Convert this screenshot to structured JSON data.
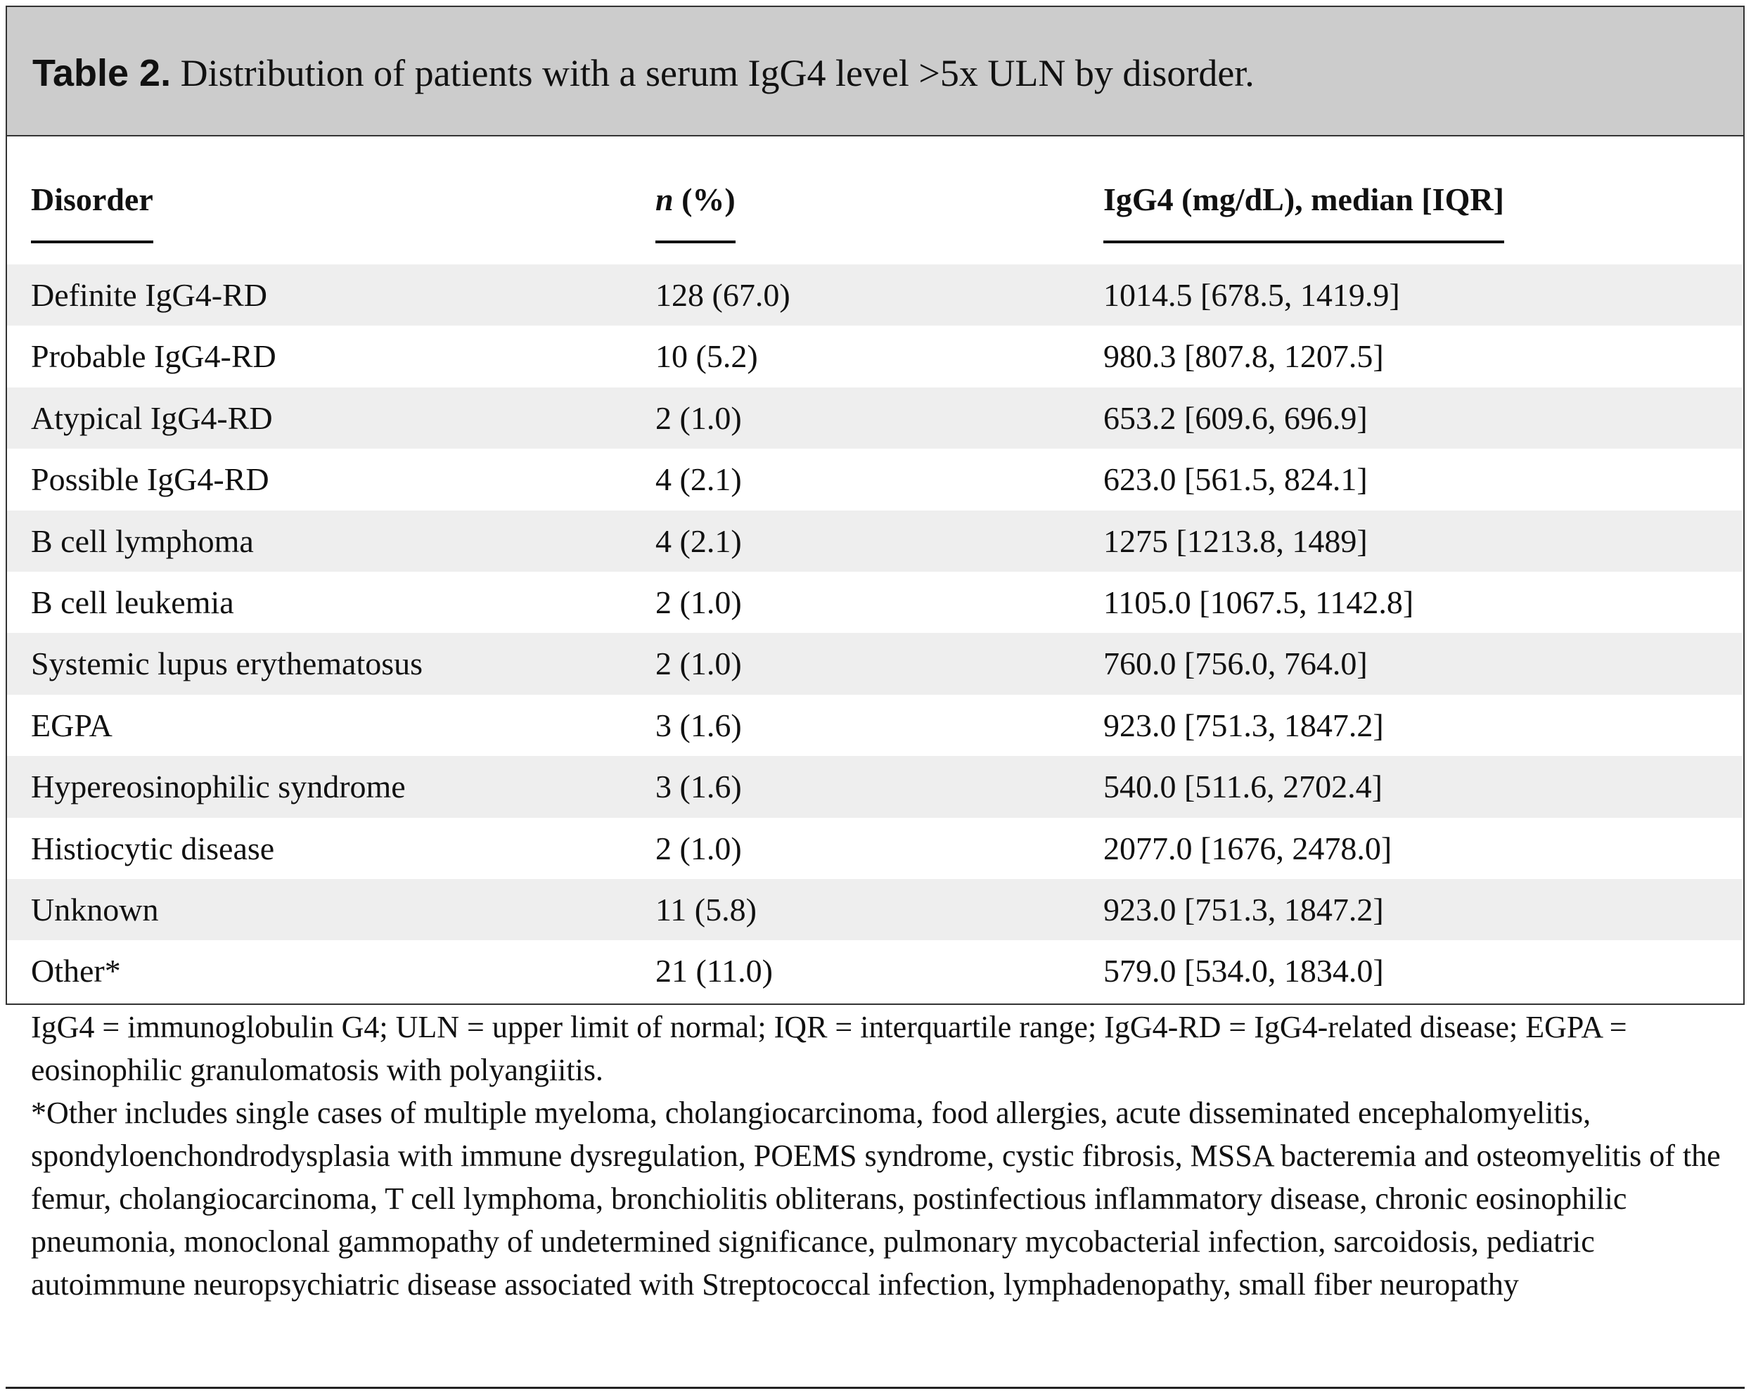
{
  "title": {
    "label": "Table 2.",
    "text": "Distribution of patients with a serum IgG4 level >5x ULN by disorder."
  },
  "table": {
    "headers": [
      "Disorder",
      [
        "n",
        " (%)"
      ],
      "IgG4 (mg/dL), median [IQR]"
    ],
    "rows": [
      [
        "Definite IgG4-RD",
        "128 (67.0)",
        "1014.5 [678.5, 1419.9]"
      ],
      [
        "Probable IgG4-RD",
        "10 (5.2)",
        "980.3 [807.8, 1207.5]"
      ],
      [
        "Atypical IgG4-RD",
        "2 (1.0)",
        "653.2 [609.6, 696.9]"
      ],
      [
        "Possible IgG4-RD",
        "4 (2.1)",
        "623.0 [561.5, 824.1]"
      ],
      [
        "B cell lymphoma",
        "4 (2.1)",
        "1275 [1213.8, 1489]"
      ],
      [
        "B cell leukemia",
        "2 (1.0)",
        "1105.0 [1067.5, 1142.8]"
      ],
      [
        "Systemic lupus erythematosus",
        "2 (1.0)",
        "760.0 [756.0, 764.0]"
      ],
      [
        "EGPA",
        "3 (1.6)",
        "923.0 [751.3, 1847.2]"
      ],
      [
        "Hypereosinophilic syndrome",
        "3 (1.6)",
        "540.0 [511.6, 2702.4]"
      ],
      [
        "Histiocytic disease",
        "2 (1.0)",
        "2077.0 [1676, 2478.0]"
      ],
      [
        "Unknown",
        "11 (5.8)",
        "923.0 [751.3, 1847.2]"
      ],
      [
        "Other*",
        "21 (11.0)",
        "579.0 [534.0, 1834.0]"
      ]
    ]
  },
  "footnotes": [
    "IgG4 = immunoglobulin G4; ULN = upper limit of normal; IQR = interquartile range; IgG4-RD = IgG4-related disease; EGPA = eosinophilic granulomatosis with polyangiitis.",
    "*Other includes single cases of multiple myeloma, cholangiocarcinoma, food allergies, acute disseminated encephalomyelitis, spondyloenchondrodysplasia with immune dysregulation, POEMS syndrome, cystic fibrosis, MSSA bacteremia and osteomyelitis of the femur, cholangiocarcinoma, T cell lymphoma, bronchiolitis obliterans, postinfectious inflammatory disease, chronic eosinophilic pneumonia, monoclonal gammopathy of undetermined significance, pulmonary mycobacterial infection, sarcoidosis, pediatric autoimmune neuropsychiatric disease associated with Streptococcal infection, lymphadenopathy, small fiber neuropathy"
  ]
}
